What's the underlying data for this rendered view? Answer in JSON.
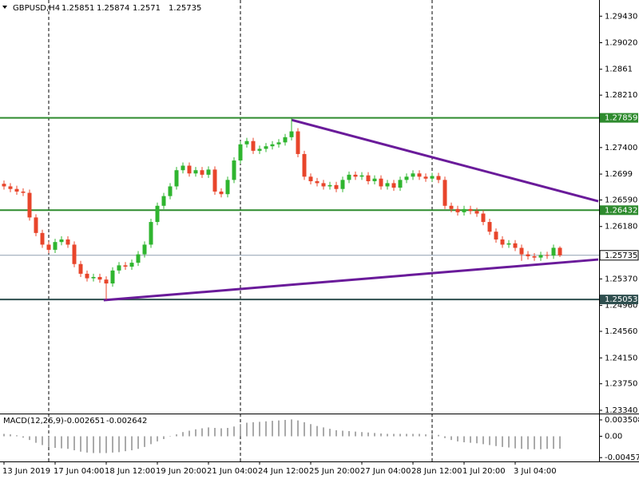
{
  "chart_data": {
    "type": "candlestick",
    "symbol": "GBPUSD,H4",
    "bull_color": "#2fb52f",
    "bear_color": "#e8452b",
    "ylim": [
      1.2329,
      1.2968
    ],
    "yticks": [
      {
        "value": 1.2943,
        "label": "1.29430"
      },
      {
        "value": 1.2902,
        "label": "1.29020"
      },
      1.2861,
      {
        "value": 1.2821,
        "label": "1.28210"
      },
      {
        "value": 1.274,
        "label": "1.27400"
      },
      1.2699,
      {
        "value": 1.2659,
        "label": "1.26590"
      },
      {
        "value": 1.2618,
        "label": "1.26180"
      },
      {
        "value": 1.2537,
        "label": "1.25370"
      },
      {
        "value": 1.2496,
        "label": "1.24960"
      },
      {
        "value": 1.2456,
        "label": "1.24560"
      },
      {
        "value": 1.2415,
        "label": "1.24150"
      },
      {
        "value": 1.2375,
        "label": "1.23750"
      },
      {
        "value": 1.2334,
        "label": "1.23340"
      }
    ],
    "xticks": [
      {
        "value": 0,
        "label": "13 Jun 2019"
      },
      {
        "value": 8,
        "label": "17 Jun 04:00"
      },
      {
        "value": 16,
        "label": "18 Jun 12:00"
      },
      {
        "value": 24,
        "label": "19 Jun 20:00"
      },
      {
        "value": 32,
        "label": "21 Jun 04:00"
      },
      {
        "value": 40,
        "label": "24 Jun 12:00"
      },
      {
        "value": 48,
        "label": "25 Jun 20:00"
      },
      {
        "value": 56,
        "label": "27 Jun 04:00"
      },
      {
        "value": 64,
        "label": "28 Jun 12:00"
      },
      {
        "value": 72,
        "label": "1 Jul 20:00"
      },
      {
        "value": 80,
        "label": "3 Jul 04:00"
      }
    ],
    "candles": [
      [
        1.2684,
        1.2689,
        1.2675,
        1.268
      ],
      [
        1.268,
        1.2685,
        1.2671,
        1.2676
      ],
      [
        1.2676,
        1.2681,
        1.2667,
        1.2672
      ],
      [
        1.2672,
        1.2677,
        1.2665,
        1.267
      ],
      [
        1.267,
        1.2675,
        1.2627,
        1.2632
      ],
      [
        1.2632,
        1.2637,
        1.2603,
        1.2608
      ],
      [
        1.2608,
        1.2613,
        1.2585,
        1.259
      ],
      [
        1.259,
        1.2595,
        1.2577,
        1.2582
      ],
      [
        1.2582,
        1.2599,
        1.2577,
        1.2594
      ],
      [
        1.2594,
        1.2603,
        1.2589,
        1.2598
      ],
      [
        1.2598,
        1.2603,
        1.2585,
        1.259
      ],
      [
        1.259,
        1.2595,
        1.2555,
        1.256
      ],
      [
        1.256,
        1.2565,
        1.254,
        1.2545
      ],
      [
        1.2545,
        1.255,
        1.2533,
        1.2538
      ],
      [
        1.2538,
        1.2545,
        1.2533,
        1.254
      ],
      [
        1.254,
        1.2545,
        1.2531,
        1.2536
      ],
      [
        1.2536,
        1.2541,
        1.2505,
        1.253
      ],
      [
        1.253,
        1.2555,
        1.2525,
        1.255
      ],
      [
        1.255,
        1.2563,
        1.2545,
        1.2558
      ],
      [
        1.2558,
        1.2563,
        1.2551,
        1.2556
      ],
      [
        1.2556,
        1.2567,
        1.2551,
        1.2562
      ],
      [
        1.2562,
        1.258,
        1.2557,
        1.2575
      ],
      [
        1.2575,
        1.2595,
        1.257,
        1.259
      ],
      [
        1.259,
        1.263,
        1.2585,
        1.2625
      ],
      [
        1.2625,
        1.2655,
        1.262,
        1.265
      ],
      [
        1.265,
        1.267,
        1.2645,
        1.2665
      ],
      [
        1.2665,
        1.2685,
        1.266,
        1.268
      ],
      [
        1.268,
        1.271,
        1.2675,
        1.2705
      ],
      [
        1.2705,
        1.2717,
        1.27,
        1.2712
      ],
      [
        1.2712,
        1.2717,
        1.2695,
        1.27
      ],
      [
        1.27,
        1.271,
        1.2695,
        1.2705
      ],
      [
        1.2705,
        1.271,
        1.2693,
        1.2698
      ],
      [
        1.2698,
        1.2711,
        1.2693,
        1.2706
      ],
      [
        1.2706,
        1.2711,
        1.2667,
        1.2672
      ],
      [
        1.2672,
        1.2677,
        1.2663,
        1.2668
      ],
      [
        1.2668,
        1.2695,
        1.2663,
        1.269
      ],
      [
        1.269,
        1.2725,
        1.2685,
        1.272
      ],
      [
        1.272,
        1.275,
        1.2715,
        1.2745
      ],
      [
        1.2745,
        1.2755,
        1.274,
        1.275
      ],
      [
        1.275,
        1.2755,
        1.273,
        1.2735
      ],
      [
        1.2735,
        1.2743,
        1.273,
        1.2738
      ],
      [
        1.2738,
        1.2747,
        1.2733,
        1.2742
      ],
      [
        1.2742,
        1.275,
        1.2737,
        1.2745
      ],
      [
        1.2745,
        1.2753,
        1.274,
        1.2748
      ],
      [
        1.2748,
        1.2761,
        1.2743,
        1.2756
      ],
      [
        1.2756,
        1.2785,
        1.2751,
        1.2765
      ],
      [
        1.2765,
        1.277,
        1.2725,
        1.273
      ],
      [
        1.273,
        1.2735,
        1.269,
        1.2695
      ],
      [
        1.2695,
        1.27,
        1.2683,
        1.2688
      ],
      [
        1.2688,
        1.2693,
        1.268,
        1.2685
      ],
      [
        1.2685,
        1.269,
        1.2675,
        1.268
      ],
      [
        1.268,
        1.2687,
        1.2675,
        1.2682
      ],
      [
        1.2682,
        1.2687,
        1.2671,
        1.2676
      ],
      [
        1.2676,
        1.2695,
        1.2671,
        1.269
      ],
      [
        1.269,
        1.2703,
        1.2685,
        1.2698
      ],
      [
        1.2698,
        1.2703,
        1.269,
        1.2695
      ],
      [
        1.2695,
        1.2702,
        1.269,
        1.2697
      ],
      [
        1.2697,
        1.2702,
        1.2683,
        1.2688
      ],
      [
        1.2688,
        1.2697,
        1.2683,
        1.2692
      ],
      [
        1.2692,
        1.2697,
        1.2675,
        1.268
      ],
      [
        1.268,
        1.269,
        1.2675,
        1.2685
      ],
      [
        1.2685,
        1.269,
        1.2673,
        1.2678
      ],
      [
        1.2678,
        1.2695,
        1.2673,
        1.269
      ],
      [
        1.269,
        1.27,
        1.2685,
        1.2695
      ],
      [
        1.2695,
        1.2705,
        1.269,
        1.27
      ],
      [
        1.27,
        1.2705,
        1.269,
        1.2695
      ],
      [
        1.2695,
        1.27,
        1.2687,
        1.2692
      ],
      [
        1.2692,
        1.2701,
        1.2687,
        1.2696
      ],
      [
        1.2696,
        1.2701,
        1.2685,
        1.269
      ],
      [
        1.269,
        1.2695,
        1.2645,
        1.265
      ],
      [
        1.265,
        1.2655,
        1.264,
        1.2645
      ],
      [
        1.2645,
        1.265,
        1.2635,
        1.264
      ],
      [
        1.264,
        1.265,
        1.2635,
        1.2645
      ],
      [
        1.2645,
        1.265,
        1.2637,
        1.2642
      ],
      [
        1.2642,
        1.2647,
        1.2633,
        1.2638
      ],
      [
        1.2638,
        1.2643,
        1.262,
        1.2625
      ],
      [
        1.2625,
        1.263,
        1.2605,
        1.261
      ],
      [
        1.261,
        1.2615,
        1.2593,
        1.2598
      ],
      [
        1.2598,
        1.2603,
        1.2585,
        1.259
      ],
      [
        1.259,
        1.2597,
        1.2585,
        1.2592
      ],
      [
        1.2592,
        1.2597,
        1.258,
        1.2585
      ],
      [
        1.2585,
        1.259,
        1.2565,
        1.2575
      ],
      [
        1.2575,
        1.258,
        1.2567,
        1.2572
      ],
      [
        1.2572,
        1.2577,
        1.2565,
        1.257
      ],
      [
        1.257,
        1.2579,
        1.2565,
        1.2574
      ],
      [
        1.2574,
        1.2579,
        1.2568,
        1.2573
      ],
      [
        1.2573,
        1.259,
        1.2568,
        1.25851
      ],
      [
        1.25851,
        1.25874,
        1.2571,
        1.25735
      ]
    ],
    "levels": [
      {
        "value": 1.27859,
        "color": "#2e8b2e"
      },
      {
        "value": 1.26432,
        "color": "#2e8b2e"
      },
      {
        "value": 1.25053,
        "color": "#2f4f4f"
      }
    ],
    "current_price_color": "#8fa0b0",
    "trendlines": [
      {
        "from": [
          45,
          1.27827
        ],
        "to": [
          93,
          1.2657
        ],
        "color": "#6a1b9a"
      },
      {
        "from": [
          15.6,
          1.25041
        ],
        "to": [
          93,
          1.2567
        ],
        "color": "#6a1b9a"
      }
    ],
    "macd": {
      "name": "MACD(12,26,9)",
      "signal_value": -0.002642,
      "color": "#555555",
      "ylim": [
        -0.0054,
        0.0047
      ],
      "yticks": [
        0.003508,
        {
          "value": 0,
          "label": "0.00"
        },
        -0.004579
      ],
      "values": [
        0.0005,
        0.0004,
        0.0002,
        -0.0003,
        -0.0008,
        -0.0014,
        -0.0019,
        -0.0023,
        -0.0025,
        -0.0026,
        -0.0027,
        -0.003,
        -0.0033,
        -0.0035,
        -0.0036,
        -0.0036,
        -0.0036,
        -0.0035,
        -0.0034,
        -0.0032,
        -0.003,
        -0.0027,
        -0.0023,
        -0.0017,
        -0.0011,
        -0.0006,
        -0.0001,
        0.0004,
        0.0009,
        0.0012,
        0.0015,
        0.0017,
        0.0019,
        0.0018,
        0.0017,
        0.0018,
        0.0021,
        0.0026,
        0.0029,
        0.003,
        0.0031,
        0.0032,
        0.0033,
        0.0034,
        0.0035,
        0.0036,
        0.0034,
        0.003,
        0.0026,
        0.0022,
        0.0019,
        0.0016,
        0.0013,
        0.0012,
        0.0011,
        0.001,
        0.0009,
        0.0008,
        0.0007,
        0.0006,
        0.0005,
        0.0005,
        0.0005,
        0.0005,
        0.0005,
        0.0005,
        0.0004,
        0.0004,
        0.0003,
        -0.0004,
        -0.0008,
        -0.0011,
        -0.0013,
        -0.0014,
        -0.0015,
        -0.0017,
        -0.0019,
        -0.0021,
        -0.0023,
        -0.0024,
        -0.0026,
        -0.0027,
        -0.0028,
        -0.0028,
        -0.0028,
        -0.0027,
        -0.0027,
        -0.002651
      ]
    }
  }
}
